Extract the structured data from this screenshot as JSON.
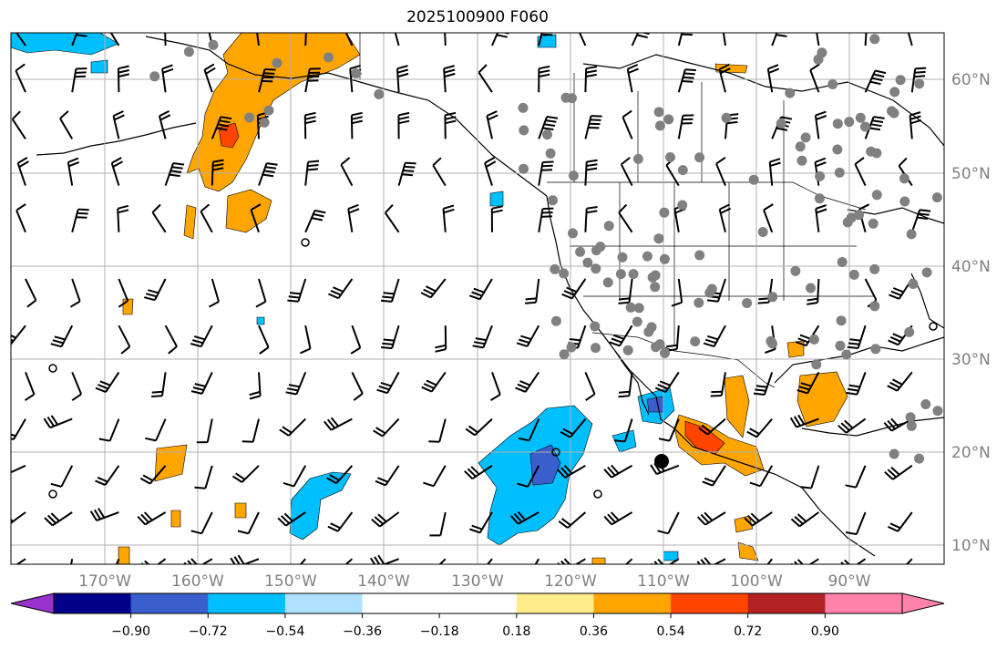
{
  "title": "2025100900 F060",
  "map": {
    "background": "#ffffff",
    "grid_color": "#b0b0b0",
    "coastline_color": "#000000",
    "lon_labels": [
      "170°W",
      "160°W",
      "150°W",
      "140°W",
      "130°W",
      "120°W",
      "110°W",
      "100°W",
      "90°W"
    ],
    "lat_labels": [
      "10°N",
      "20°N",
      "30°N",
      "40°N",
      "50°N",
      "60°N"
    ],
    "station_dot_color": "#808080"
  },
  "colorbar": {
    "colors": [
      "#9932cc",
      "#00008b",
      "#3a5fcd",
      "#00bfff",
      "#b0e2ff",
      "#ffffff",
      "#ffec8b",
      "#ffa500",
      "#ff4500",
      "#b22222",
      "#ff82ab"
    ],
    "tick_labels": [
      "−0.90",
      "−0.72",
      "−0.54",
      "−0.36",
      "−0.18",
      "0.18",
      "0.36",
      "0.54",
      "0.72",
      "0.90"
    ]
  }
}
